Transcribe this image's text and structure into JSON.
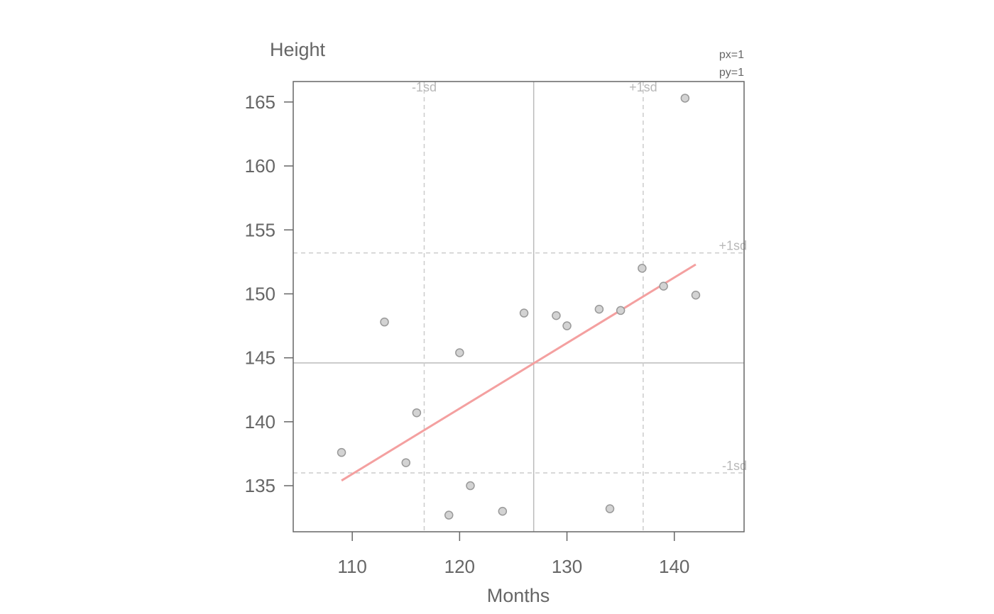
{
  "chart_data": {
    "type": "scatter",
    "title": "",
    "xlabel": "Months",
    "ylabel": "Height",
    "xlim": [
      104.5,
      146.5
    ],
    "ylim": [
      131.4,
      166.6
    ],
    "x_ticks": [
      110,
      120,
      130,
      140
    ],
    "y_ticks": [
      135,
      140,
      145,
      150,
      155,
      160,
      165
    ],
    "grid": false,
    "points": [
      {
        "x": 109,
        "y": 137.6
      },
      {
        "x": 113,
        "y": 147.8
      },
      {
        "x": 115,
        "y": 136.8
      },
      {
        "x": 116,
        "y": 140.7
      },
      {
        "x": 119,
        "y": 132.7
      },
      {
        "x": 120,
        "y": 145.4
      },
      {
        "x": 121,
        "y": 135.0
      },
      {
        "x": 124,
        "y": 133.0
      },
      {
        "x": 126,
        "y": 148.5
      },
      {
        "x": 129,
        "y": 148.3
      },
      {
        "x": 130,
        "y": 147.5
      },
      {
        "x": 133,
        "y": 148.8
      },
      {
        "x": 134,
        "y": 133.2
      },
      {
        "x": 135,
        "y": 148.7
      },
      {
        "x": 137,
        "y": 152.0
      },
      {
        "x": 139,
        "y": 150.6
      },
      {
        "x": 141,
        "y": 165.3
      },
      {
        "x": 142,
        "y": 149.9
      }
    ],
    "mean_x": 126.9,
    "mean_y": 144.6,
    "x_sd_lines": [
      {
        "value": 116.7,
        "label": "-1sd"
      },
      {
        "value": 137.1,
        "label": "+1sd"
      }
    ],
    "y_sd_lines": [
      {
        "value": 153.2,
        "label": "+1sd"
      },
      {
        "value": 136.0,
        "label": "-1sd"
      }
    ],
    "regression_line": {
      "x1": 109,
      "y1": 135.4,
      "x2": 142,
      "y2": 152.3,
      "color": "#f4a0a0"
    },
    "point_color": "#d3d3d3",
    "point_stroke": "#999999",
    "corner_notes": [
      "px=1",
      "py=1"
    ]
  }
}
